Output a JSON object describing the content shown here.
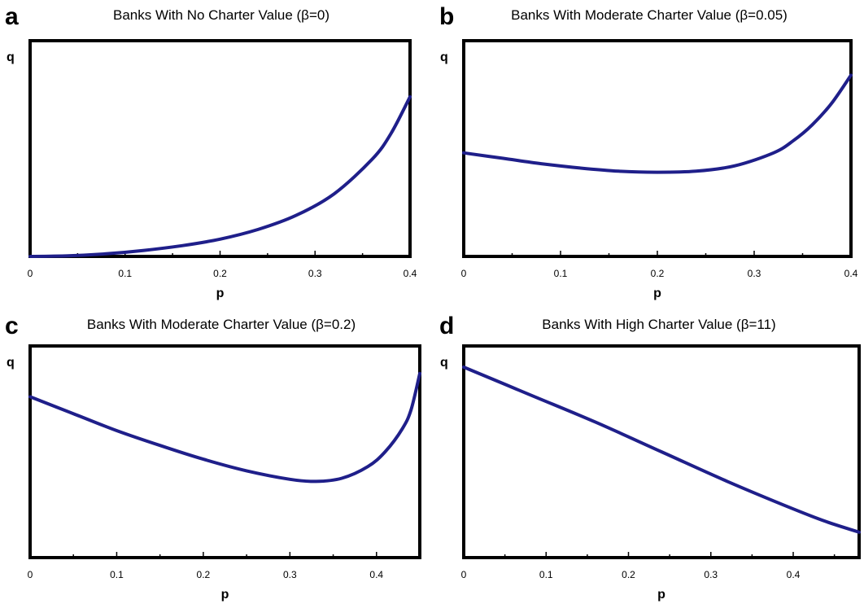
{
  "colors": {
    "curve": "#1f1f8a",
    "frame": "#000000"
  },
  "chart_data": [
    {
      "panel": "a",
      "type": "line",
      "title": "Banks With No Charter Value (β=0)",
      "xlabel": "p",
      "ylabel": "q",
      "xlim": [
        0,
        0.4
      ],
      "ylim": [
        0,
        1
      ],
      "xticks": [
        0,
        0.1,
        0.2,
        0.3,
        0.4
      ],
      "xtick_labels": [
        "0",
        "0.1",
        "0.2",
        "0.3",
        "0.4"
      ],
      "grid": false,
      "series": [
        {
          "x": [
            0,
            0.04,
            0.08,
            0.12,
            0.16,
            0.2,
            0.24,
            0.28,
            0.32,
            0.36,
            0.38,
            0.4
          ],
          "y": [
            0,
            0.003,
            0.012,
            0.028,
            0.05,
            0.08,
            0.125,
            0.19,
            0.29,
            0.45,
            0.57,
            0.74
          ]
        }
      ]
    },
    {
      "panel": "b",
      "type": "line",
      "title": "Banks With Moderate Charter Value (β=0.05)",
      "xlabel": "p",
      "ylabel": "q",
      "xlim": [
        0,
        0.4
      ],
      "ylim": [
        0,
        1
      ],
      "xticks": [
        0,
        0.1,
        0.2,
        0.3,
        0.4
      ],
      "xtick_labels": [
        "0",
        "0.1",
        "0.2",
        "0.3",
        "0.4"
      ],
      "grid": false,
      "series": [
        {
          "x": [
            0,
            0.04,
            0.08,
            0.12,
            0.16,
            0.2,
            0.24,
            0.28,
            0.32,
            0.34,
            0.36,
            0.38,
            0.4
          ],
          "y": [
            0.48,
            0.455,
            0.43,
            0.41,
            0.395,
            0.39,
            0.395,
            0.42,
            0.48,
            0.535,
            0.61,
            0.71,
            0.84
          ]
        }
      ]
    },
    {
      "panel": "c",
      "type": "line",
      "title": "Banks With Moderate Charter Value (β=0.2)",
      "xlabel": "p",
      "ylabel": "q",
      "xlim": [
        0,
        0.45
      ],
      "ylim": [
        0,
        1
      ],
      "xticks": [
        0,
        0.1,
        0.2,
        0.3,
        0.4
      ],
      "xtick_labels": [
        "0",
        "0.1",
        "0.2",
        "0.3",
        "0.4"
      ],
      "grid": false,
      "series": [
        {
          "x": [
            0,
            0.05,
            0.1,
            0.15,
            0.2,
            0.25,
            0.3,
            0.33,
            0.36,
            0.39,
            0.41,
            0.43,
            0.44,
            0.45
          ],
          "y": [
            0.76,
            0.68,
            0.6,
            0.53,
            0.465,
            0.41,
            0.37,
            0.36,
            0.375,
            0.43,
            0.5,
            0.61,
            0.7,
            0.87
          ]
        }
      ]
    },
    {
      "panel": "d",
      "type": "line",
      "title": "Banks With High Charter Value (β=11)",
      "xlabel": "p",
      "ylabel": "q",
      "xlim": [
        0,
        0.48
      ],
      "ylim": [
        0,
        1
      ],
      "xticks": [
        0,
        0.1,
        0.2,
        0.3,
        0.4
      ],
      "xtick_labels": [
        "0",
        "0.1",
        "0.2",
        "0.3",
        "0.4"
      ],
      "grid": false,
      "series": [
        {
          "x": [
            0,
            0.08,
            0.16,
            0.24,
            0.32,
            0.4,
            0.44,
            0.48
          ],
          "y": [
            0.9,
            0.77,
            0.64,
            0.5,
            0.36,
            0.23,
            0.17,
            0.12
          ]
        }
      ]
    }
  ]
}
